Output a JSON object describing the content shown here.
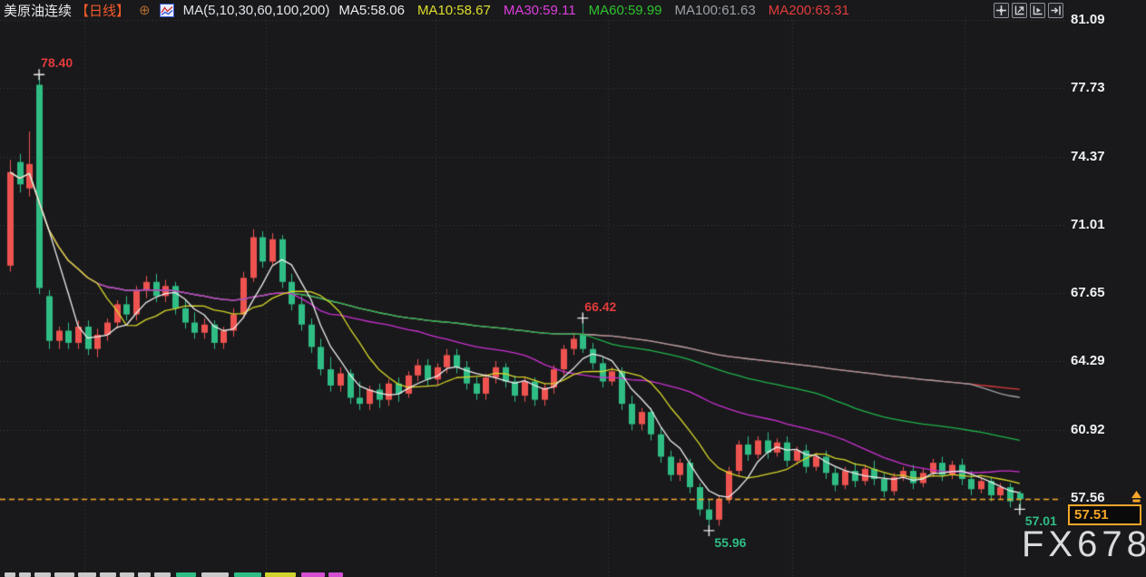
{
  "header": {
    "symbol": "美原油连续",
    "period": "【日线】",
    "compare_icon": "⊕",
    "ma_group_label": "MA(5,10,30,60,100,200)",
    "ma_items": [
      {
        "label": "MA5:58.06",
        "color": "#e8eaee"
      },
      {
        "label": "MA10:58.67",
        "color": "#dede2e"
      },
      {
        "label": "MA30:59.11",
        "color": "#de3ede"
      },
      {
        "label": "MA60:59.99",
        "color": "#2ec22e"
      },
      {
        "label": "MA100:61.63",
        "color": "#9aa0a6"
      },
      {
        "label": "MA200:63.31",
        "color": "#e23b3b"
      }
    ]
  },
  "toolbar": {
    "icons": [
      "crosshair-tool-icon",
      "zoom-in-axis-icon",
      "play-axis-icon",
      "go-to-latest-icon"
    ]
  },
  "price_tag": {
    "value": "57.51",
    "color": "#f7a62a"
  },
  "watermark": {
    "text": "FX678"
  },
  "bottom_strip": {
    "fragments": [
      {
        "x": 5,
        "w": 12,
        "c": "#c9c9c9"
      },
      {
        "x": 21,
        "w": 13,
        "c": "#c9c9c9"
      },
      {
        "x": 38,
        "w": 18,
        "c": "#c9c9c9"
      },
      {
        "x": 60,
        "w": 22,
        "c": "#c9c9c9"
      },
      {
        "x": 86,
        "w": 20,
        "c": "#c9c9c9"
      },
      {
        "x": 110,
        "w": 18,
        "c": "#c9c9c9"
      },
      {
        "x": 132,
        "w": 16,
        "c": "#c9c9c9"
      },
      {
        "x": 152,
        "w": 14,
        "c": "#c9c9c9"
      },
      {
        "x": 170,
        "w": 18,
        "c": "#c9c9c9"
      },
      {
        "x": 194,
        "w": 22,
        "c": "#2fbd85"
      },
      {
        "x": 222,
        "w": 30,
        "c": "#c9c9c9"
      },
      {
        "x": 258,
        "w": 30,
        "c": "#2fbd85"
      },
      {
        "x": 292,
        "w": 34,
        "c": "#cfd32c"
      },
      {
        "x": 332,
        "w": 26,
        "c": "#d24fd2"
      },
      {
        "x": 362,
        "w": 16,
        "c": "#d24fd2"
      }
    ]
  },
  "chart_data": {
    "type": "candlestick",
    "title": "美原油连续 日线 (WTI crude continuous, daily)",
    "color_convention": "red-up green-down",
    "up_color": "#ee5350",
    "down_color": "#2fbd85",
    "current_price": 57.51,
    "y_axis": {
      "side": "right",
      "ticks": [
        "81.09",
        "77.73",
        "74.37",
        "71.01",
        "67.65",
        "64.29",
        "60.92",
        "57.56"
      ],
      "ylim": [
        55.2,
        81.6
      ]
    },
    "grid": true,
    "grid_vertical_x": [
      93,
      293,
      480,
      670,
      873,
      1063
    ],
    "legend_position": "top",
    "ma_overlays": [
      {
        "period": 5,
        "color": "#efefef"
      },
      {
        "period": 10,
        "color": "#d6d62a"
      },
      {
        "period": 30,
        "color": "#cb30d2"
      },
      {
        "period": 60,
        "color": "#1fb44b"
      },
      {
        "period": 100,
        "color": "#a0a3a8"
      },
      {
        "period": 200,
        "color": "#e03c3c"
      }
    ],
    "ma_legend_values": {
      "MA5": 58.06,
      "MA10": 58.67,
      "MA30": 59.11,
      "MA60": 59.99,
      "MA100": 61.63,
      "MA200": 63.31
    },
    "annotations": [
      {
        "candle": 3,
        "price": 78.4,
        "text": "78.40",
        "color": "#e23b3b",
        "position": "above"
      },
      {
        "candle": 59,
        "price": 66.42,
        "text": "66.42",
        "color": "#e23b3b",
        "position": "above"
      },
      {
        "candle": 72,
        "price": 55.96,
        "text": "55.96",
        "color": "#2fbd85",
        "position": "below"
      },
      {
        "candle": 104,
        "price": 57.01,
        "text": "57.01",
        "color": "#2fbd85",
        "position": "below"
      }
    ],
    "ohlc": [
      [
        69.0,
        74.2,
        68.7,
        73.6
      ],
      [
        74.1,
        74.5,
        72.6,
        73.0
      ],
      [
        72.8,
        75.6,
        72.4,
        74.0
      ],
      [
        77.9,
        78.4,
        67.6,
        67.9
      ],
      [
        67.5,
        67.8,
        64.9,
        65.3
      ],
      [
        65.3,
        66.0,
        64.9,
        65.8
      ],
      [
        65.8,
        66.2,
        64.9,
        65.2
      ],
      [
        65.2,
        66.3,
        64.9,
        66.0
      ],
      [
        66.0,
        66.3,
        64.6,
        64.9
      ],
      [
        64.9,
        65.9,
        64.5,
        65.6
      ],
      [
        65.6,
        66.4,
        65.3,
        66.2
      ],
      [
        66.2,
        67.3,
        65.9,
        67.1
      ],
      [
        67.1,
        67.5,
        66.3,
        66.6
      ],
      [
        66.6,
        68.0,
        66.3,
        67.8
      ],
      [
        67.8,
        68.5,
        67.4,
        68.2
      ],
      [
        68.2,
        68.6,
        67.2,
        67.5
      ],
      [
        67.5,
        68.3,
        67.2,
        68.0
      ],
      [
        68.0,
        68.2,
        66.6,
        66.9
      ],
      [
        66.9,
        67.3,
        65.9,
        66.2
      ],
      [
        66.2,
        66.7,
        65.4,
        65.7
      ],
      [
        65.7,
        66.4,
        65.4,
        66.1
      ],
      [
        66.1,
        66.3,
        64.9,
        65.2
      ],
      [
        65.2,
        66.0,
        64.9,
        65.8
      ],
      [
        65.8,
        66.9,
        65.5,
        66.6
      ],
      [
        66.6,
        68.7,
        66.4,
        68.4
      ],
      [
        68.4,
        70.8,
        68.2,
        70.4
      ],
      [
        70.4,
        70.7,
        68.9,
        69.2
      ],
      [
        69.2,
        70.6,
        69.0,
        70.3
      ],
      [
        70.3,
        70.5,
        67.9,
        68.2
      ],
      [
        68.2,
        68.6,
        66.8,
        67.1
      ],
      [
        67.1,
        67.5,
        65.8,
        66.1
      ],
      [
        66.1,
        66.4,
        64.7,
        65.0
      ],
      [
        65.0,
        65.4,
        63.6,
        63.9
      ],
      [
        63.9,
        64.5,
        62.8,
        63.1
      ],
      [
        63.1,
        64.0,
        62.8,
        63.7
      ],
      [
        63.7,
        63.9,
        62.2,
        62.5
      ],
      [
        62.5,
        63.3,
        61.9,
        62.2
      ],
      [
        62.2,
        63.1,
        61.9,
        62.9
      ],
      [
        62.9,
        63.2,
        62.0,
        62.4
      ],
      [
        62.4,
        63.4,
        62.1,
        63.2
      ],
      [
        63.2,
        63.5,
        62.3,
        62.7
      ],
      [
        62.7,
        63.8,
        62.5,
        63.6
      ],
      [
        63.6,
        64.4,
        63.3,
        64.1
      ],
      [
        64.1,
        64.4,
        63.1,
        63.4
      ],
      [
        63.4,
        64.2,
        63.1,
        64.0
      ],
      [
        64.0,
        64.9,
        63.7,
        64.6
      ],
      [
        64.6,
        64.9,
        63.7,
        64.0
      ],
      [
        64.0,
        64.3,
        62.9,
        63.2
      ],
      [
        63.2,
        63.5,
        62.4,
        62.7
      ],
      [
        62.7,
        63.7,
        62.4,
        63.5
      ],
      [
        63.5,
        64.3,
        63.2,
        64.0
      ],
      [
        64.0,
        64.2,
        63.0,
        63.3
      ],
      [
        63.3,
        63.6,
        62.3,
        62.6
      ],
      [
        62.6,
        63.5,
        62.3,
        63.3
      ],
      [
        63.3,
        63.5,
        62.1,
        62.4
      ],
      [
        62.4,
        63.2,
        62.1,
        63.0
      ],
      [
        63.0,
        64.1,
        62.7,
        63.9
      ],
      [
        63.9,
        65.1,
        63.6,
        64.9
      ],
      [
        64.9,
        65.7,
        64.6,
        65.4
      ],
      [
        65.6,
        66.42,
        64.7,
        64.9
      ],
      [
        64.9,
        65.2,
        63.9,
        64.2
      ],
      [
        64.2,
        64.5,
        63.0,
        63.3
      ],
      [
        63.3,
        64.0,
        63.1,
        63.8
      ],
      [
        63.8,
        64.0,
        61.9,
        62.2
      ],
      [
        62.2,
        62.6,
        60.9,
        61.2
      ],
      [
        61.2,
        62.0,
        60.9,
        61.8
      ],
      [
        61.8,
        62.0,
        60.4,
        60.7
      ],
      [
        60.7,
        61.0,
        59.3,
        59.6
      ],
      [
        59.6,
        59.9,
        58.4,
        58.7
      ],
      [
        58.7,
        59.5,
        58.4,
        59.3
      ],
      [
        59.3,
        59.5,
        57.8,
        58.1
      ],
      [
        58.1,
        58.3,
        56.7,
        57.0
      ],
      [
        57.0,
        57.5,
        55.96,
        56.5
      ],
      [
        56.5,
        57.7,
        56.2,
        57.5
      ],
      [
        57.5,
        59.1,
        57.3,
        58.9
      ],
      [
        58.9,
        60.4,
        58.6,
        60.2
      ],
      [
        60.2,
        60.6,
        59.4,
        59.7
      ],
      [
        59.7,
        60.6,
        59.5,
        60.4
      ],
      [
        60.4,
        60.8,
        59.5,
        59.8
      ],
      [
        59.8,
        60.5,
        59.6,
        60.3
      ],
      [
        60.3,
        60.6,
        59.1,
        59.4
      ],
      [
        59.4,
        60.1,
        59.2,
        59.9
      ],
      [
        59.9,
        60.2,
        58.8,
        59.1
      ],
      [
        59.1,
        59.8,
        58.9,
        59.6
      ],
      [
        59.6,
        59.9,
        58.5,
        58.8
      ],
      [
        58.8,
        59.1,
        57.9,
        58.2
      ],
      [
        58.2,
        59.1,
        58.0,
        58.9
      ],
      [
        58.9,
        59.3,
        58.1,
        58.4
      ],
      [
        58.4,
        59.2,
        58.2,
        59.0
      ],
      [
        59.0,
        59.4,
        58.2,
        58.5
      ],
      [
        58.5,
        58.8,
        57.6,
        57.9
      ],
      [
        57.9,
        58.8,
        57.7,
        58.6
      ],
      [
        58.6,
        59.1,
        58.4,
        58.9
      ],
      [
        58.9,
        59.2,
        58.0,
        58.3
      ],
      [
        58.3,
        59.0,
        58.1,
        58.8
      ],
      [
        58.8,
        59.5,
        58.6,
        59.3
      ],
      [
        59.3,
        59.6,
        58.4,
        58.7
      ],
      [
        58.7,
        59.4,
        58.5,
        59.2
      ],
      [
        59.2,
        59.5,
        58.2,
        58.5
      ],
      [
        58.5,
        58.9,
        57.7,
        58.0
      ],
      [
        58.0,
        58.6,
        57.8,
        58.4
      ],
      [
        58.4,
        58.6,
        57.4,
        57.7
      ],
      [
        57.7,
        58.3,
        57.5,
        58.1
      ],
      [
        58.1,
        58.3,
        57.1,
        57.4
      ],
      [
        57.8,
        57.9,
        57.01,
        57.51
      ]
    ]
  }
}
